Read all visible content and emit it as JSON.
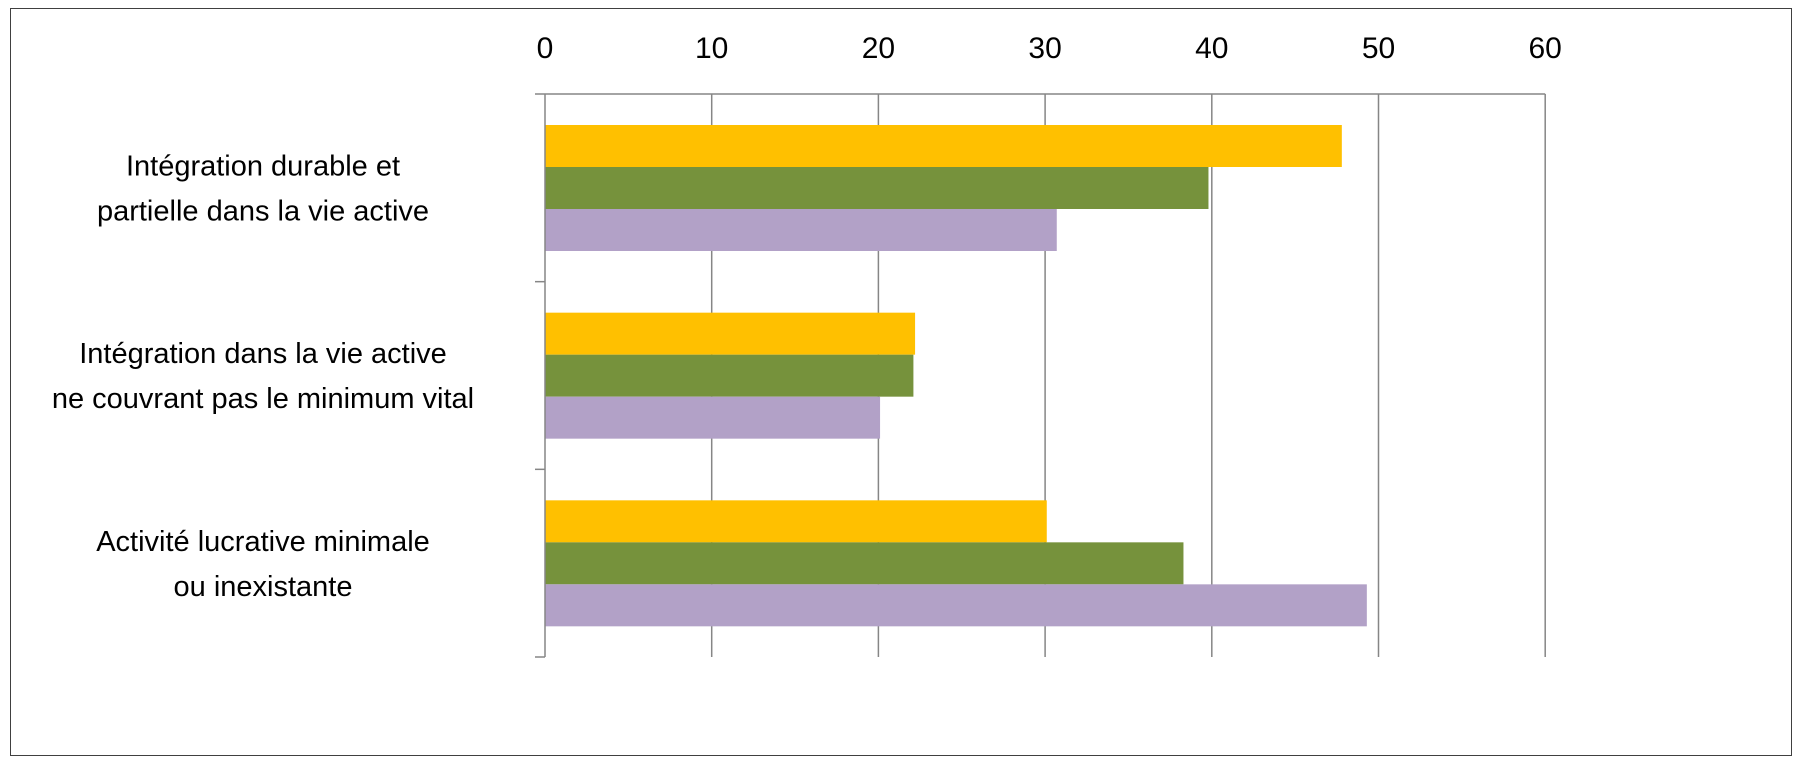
{
  "chart_data": {
    "type": "bar",
    "orientation": "horizontal",
    "xlim": [
      0,
      60
    ],
    "x_ticks": [
      0,
      10,
      20,
      30,
      40,
      50,
      60
    ],
    "x_axis_position": "top",
    "grid": true,
    "legend": "none",
    "categories": [
      [
        "Intégration durable et",
        "partielle dans la vie active"
      ],
      [
        "Intégration dans la vie active",
        "ne couvrant pas le minimum vital"
      ],
      [
        "Activité lucrative  minimale",
        "ou  inexistante"
      ]
    ],
    "series": [
      {
        "color": "#FFC000",
        "values": [
          47.8,
          22.2,
          30.1
        ]
      },
      {
        "color": "#76923C",
        "values": [
          39.8,
          22.1,
          38.3
        ]
      },
      {
        "color": "#B2A1C7",
        "values": [
          30.7,
          20.1,
          49.3
        ]
      }
    ]
  }
}
